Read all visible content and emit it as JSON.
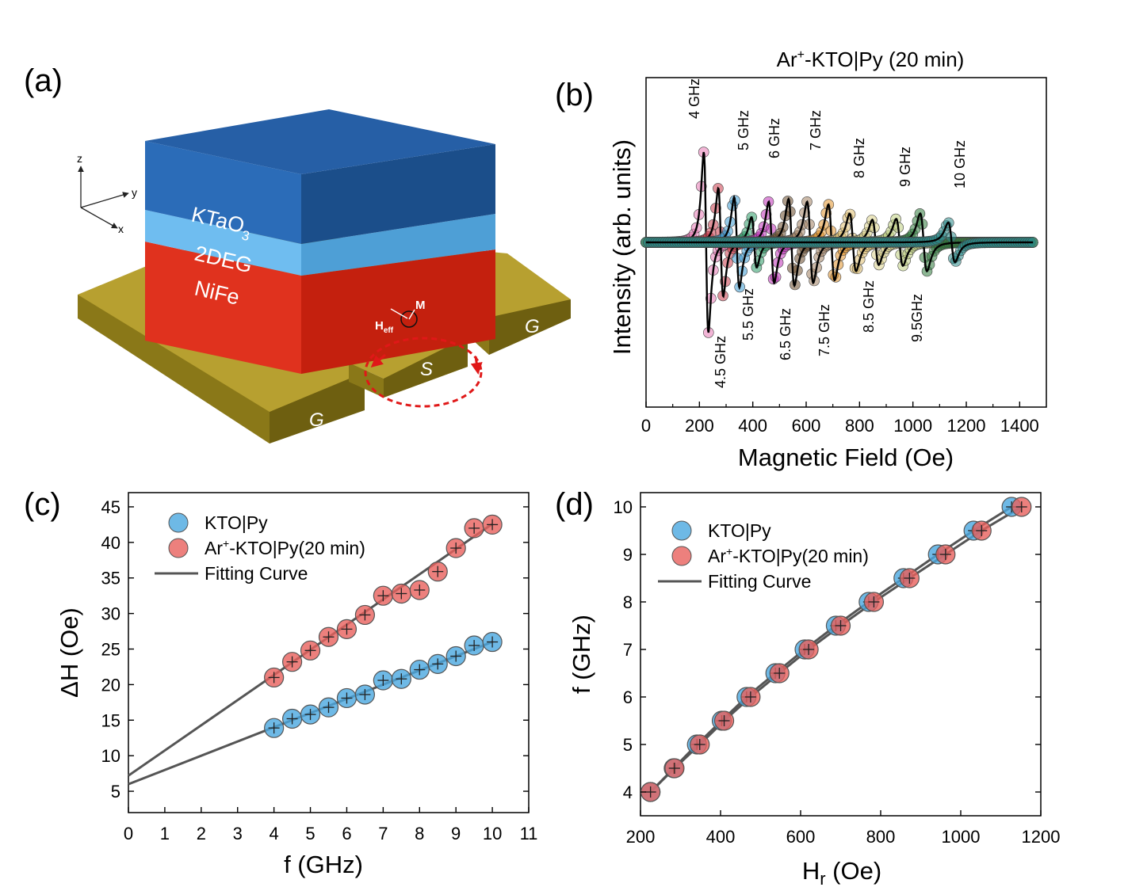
{
  "panel_labels": [
    "(a)",
    "(b)",
    "(c)",
    "(d)"
  ],
  "schematic": {
    "layers": [
      "KTaO",
      "3",
      "2DEG",
      "NiFe"
    ],
    "axes": [
      "z",
      "y",
      "x"
    ],
    "vectors": [
      "M",
      "H",
      "eff"
    ],
    "electrodes": [
      "G",
      "S",
      "G"
    ],
    "colors": {
      "kto": "#1f5a9c",
      "twodeg": "#5aaee5",
      "nife": "#e0321e",
      "gold": "#a8941c"
    }
  },
  "chart_data": [
    {
      "panel": "b",
      "type": "line",
      "title_parts": [
        "Ar",
        "+",
        "-KTO|Py (20 min)"
      ],
      "xlabel": "Magnetic Field (Oe)",
      "ylabel": "Intensity (arb. units)",
      "xlim": [
        0,
        1500
      ],
      "ylim": [
        -1.3,
        1
      ],
      "xticks": [
        0,
        200,
        400,
        600,
        800,
        1000,
        1200,
        1400
      ],
      "yticks_shown": false,
      "annotations_top": [
        "4 GHz",
        "5 GHz",
        "6 GHz",
        "7 GHz",
        "8 GHz",
        "9 GHz",
        "10 GHz"
      ],
      "annotations_bottom": [
        "4.5 GHz",
        "5.5 GHz",
        "6.5 GHz",
        "7.5 GHz",
        "8.5 GHz",
        "9.5GHz"
      ],
      "series": [
        {
          "f": 4.0,
          "hr": 225,
          "width": 15,
          "amp": 1.0,
          "color": "#e878b5"
        },
        {
          "f": 4.5,
          "hr": 280,
          "width": 16,
          "amp": 0.6,
          "color": "#c83a4a"
        },
        {
          "f": 5.0,
          "hr": 340,
          "width": 17,
          "amp": 0.5,
          "color": "#3c9ad2"
        },
        {
          "f": 5.5,
          "hr": 405,
          "width": 17,
          "amp": 0.28,
          "color": "#2a9a66"
        },
        {
          "f": 6.0,
          "hr": 470,
          "width": 18,
          "amp": 0.45,
          "color": "#c030b8"
        },
        {
          "f": 6.5,
          "hr": 545,
          "width": 19,
          "amp": 0.48,
          "color": "#6a4a2a"
        },
        {
          "f": 7.0,
          "hr": 615,
          "width": 20,
          "amp": 0.45,
          "color": "#a08060"
        },
        {
          "f": 7.5,
          "hr": 695,
          "width": 20,
          "amp": 0.42,
          "color": "#e0922a"
        },
        {
          "f": 8.0,
          "hr": 775,
          "width": 21,
          "amp": 0.32,
          "color": "#e0c070"
        },
        {
          "f": 8.5,
          "hr": 860,
          "width": 21,
          "amp": 0.25,
          "color": "#d8d088"
        },
        {
          "f": 9.0,
          "hr": 950,
          "width": 22,
          "amp": 0.26,
          "color": "#c0d080"
        },
        {
          "f": 9.5,
          "hr": 1040,
          "width": 22,
          "amp": 0.32,
          "color": "#2e7a3a"
        },
        {
          "f": 10.0,
          "hr": 1145,
          "width": 22,
          "amp": 0.22,
          "color": "#2a8a8a"
        }
      ]
    },
    {
      "panel": "c",
      "type": "scatter",
      "xlabel": "f (GHz)",
      "ylabel": "ΔH (Oe)",
      "xlim": [
        0,
        11
      ],
      "ylim": [
        2,
        47
      ],
      "xticks": [
        0,
        1,
        2,
        3,
        4,
        5,
        6,
        7,
        8,
        9,
        10,
        11
      ],
      "yticks": [
        5,
        10,
        15,
        20,
        25,
        30,
        35,
        40,
        45
      ],
      "legend": [
        "KTO|Py",
        "Ar+-KTO|Py(20 min)",
        "Fitting Curve"
      ],
      "legend_parts": [
        "Ar",
        "+",
        "-KTO|Py(20 min)"
      ],
      "series": [
        {
          "name": "KTO|Py",
          "color": "#4aa8e0",
          "x": [
            4,
            4.5,
            5,
            5.5,
            6,
            6.5,
            7,
            7.5,
            8,
            8.5,
            9,
            9.5,
            10
          ],
          "y": [
            13.9,
            15.2,
            15.8,
            16.8,
            18.1,
            18.6,
            20.6,
            20.8,
            22.1,
            22.9,
            24.0,
            25.5,
            26.0
          ],
          "fit": {
            "x": [
              0,
              10
            ],
            "y": [
              6.0,
              26.0
            ]
          }
        },
        {
          "name": "Ar+-KTO|Py(20 min)",
          "color": "#e8605c",
          "x": [
            4,
            4.5,
            5,
            5.5,
            6,
            6.5,
            7,
            7.5,
            8,
            8.5,
            9,
            9.5,
            10
          ],
          "y": [
            21.0,
            23.2,
            24.8,
            26.7,
            27.8,
            29.8,
            32.5,
            32.8,
            33.3,
            35.9,
            39.2,
            42.0,
            42.5
          ],
          "fit": {
            "x": [
              0,
              10
            ],
            "y": [
              7.2,
              42.6
            ]
          }
        }
      ]
    },
    {
      "panel": "d",
      "type": "scatter",
      "xlabel_parts": [
        "H",
        "r",
        " (Oe)"
      ],
      "ylabel": "f (GHz)",
      "xlim": [
        200,
        1200
      ],
      "ylim": [
        3.5,
        10.3
      ],
      "xticks": [
        200,
        400,
        600,
        800,
        1000,
        1200
      ],
      "yticks": [
        4,
        5,
        6,
        7,
        8,
        9,
        10
      ],
      "legend": [
        "KTO|Py",
        "Ar+-KTO|Py(20 min)",
        "Fitting Curve"
      ],
      "legend_parts": [
        "Ar",
        "+",
        "-KTO|Py(20 min)"
      ],
      "series": [
        {
          "name": "KTO|Py",
          "color": "#4aa8e0",
          "x": [
            225,
            283,
            341,
            403,
            465,
            537,
            610,
            688,
            770,
            857,
            943,
            1032,
            1127
          ],
          "y": [
            4,
            4.5,
            5,
            5.5,
            6,
            6.5,
            7,
            7.5,
            8,
            8.5,
            9,
            9.5,
            10
          ]
        },
        {
          "name": "Ar+-KTO|Py(20 min)",
          "color": "#e8605c",
          "x": [
            225,
            285,
            348,
            409,
            475,
            547,
            620,
            700,
            783,
            872,
            962,
            1052,
            1152
          ],
          "y": [
            4,
            4.5,
            5,
            5.5,
            6,
            6.5,
            7,
            7.5,
            8,
            8.5,
            9,
            9.5,
            10
          ]
        }
      ]
    }
  ]
}
